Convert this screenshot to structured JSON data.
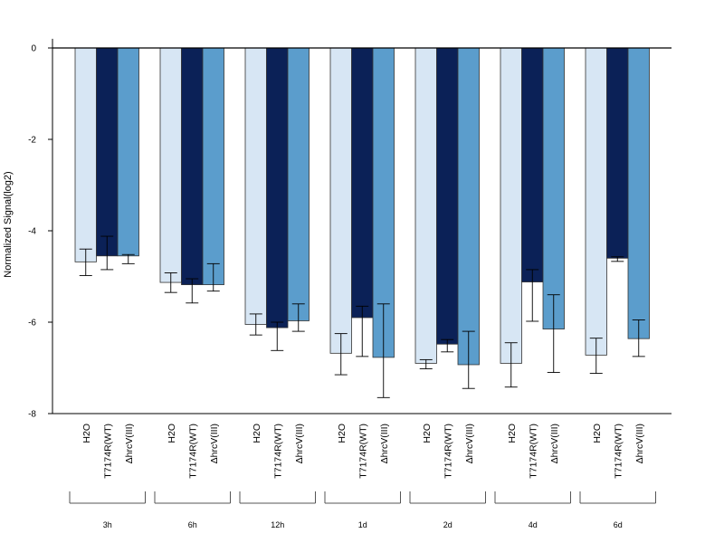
{
  "chart_data": {
    "type": "bar",
    "ylabel": "Normalized Signal(log2)",
    "ylim": [
      -8,
      0.2
    ],
    "yticks": [
      0,
      -2,
      -4,
      -6,
      -8
    ],
    "grid": false,
    "conditions": [
      "H2O",
      "T7174R(WT)",
      "ΔhrcV(III)"
    ],
    "groups": [
      "3h",
      "6h",
      "12h",
      "1d",
      "2d",
      "4d",
      "6d"
    ],
    "series": [
      {
        "name": "H2O",
        "color": "#d7e6f4",
        "values": [
          -4.68,
          -5.13,
          -6.05,
          -6.68,
          -6.9,
          -6.9,
          -6.72
        ],
        "err_low": [
          -4.98,
          -5.35,
          -6.28,
          -7.15,
          -7.02,
          -7.42,
          -7.12
        ],
        "err_high": [
          -4.4,
          -4.92,
          -5.82,
          -6.25,
          -6.82,
          -6.45,
          -6.35
        ]
      },
      {
        "name": "T7174R(WT)",
        "color": "#0b2157",
        "values": [
          -4.55,
          -5.18,
          -6.12,
          -5.9,
          -6.48,
          -5.12,
          -4.6
        ],
        "err_low": [
          -4.85,
          -5.58,
          -6.62,
          -6.75,
          -6.65,
          -5.98,
          -4.67
        ],
        "err_high": [
          -4.12,
          -5.05,
          -6.0,
          -5.65,
          -6.38,
          -4.85,
          -4.57
        ]
      },
      {
        "name": "ΔhrcV(III)",
        "color": "#5b9dcc",
        "values": [
          -4.55,
          -5.18,
          -5.97,
          -6.77,
          -6.93,
          -6.15,
          -6.36
        ],
        "err_low": [
          -4.72,
          -5.32,
          -6.2,
          -7.65,
          -7.45,
          -7.1,
          -6.75
        ],
        "err_high": [
          -4.52,
          -4.72,
          -5.6,
          -5.6,
          -6.2,
          -5.4,
          -5.95
        ]
      }
    ]
  }
}
